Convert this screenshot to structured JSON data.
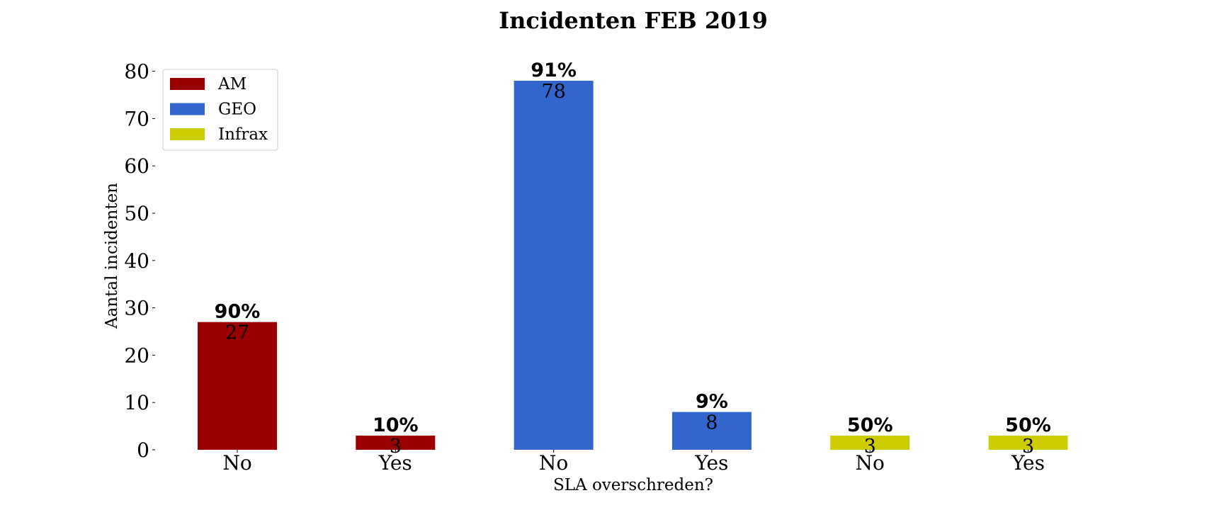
{
  "chart_data": {
    "type": "bar",
    "title": "Incidenten FEB 2019",
    "xlabel": "SLA overschreden?",
    "ylabel": "Aantal incidenten",
    "ylim": [
      0,
      84
    ],
    "yticks": [
      0,
      10,
      20,
      30,
      40,
      50,
      60,
      70,
      80
    ],
    "grid": false,
    "legend_placement": "top-left",
    "categories": [
      "No",
      "Yes",
      "No",
      "Yes",
      "No",
      "Yes"
    ],
    "values": [
      27,
      3,
      78,
      8,
      3,
      3
    ],
    "percent_labels": [
      "90%",
      "10%",
      "91%",
      "9%",
      "50%",
      "50%"
    ],
    "bar_groups": [
      "AM",
      "AM",
      "GEO",
      "GEO",
      "Infrax",
      "Infrax"
    ],
    "series": [
      {
        "name": "AM",
        "color": "#990000"
      },
      {
        "name": "GEO",
        "color": "#3366cc"
      },
      {
        "name": "Infrax",
        "color": "#cccc00"
      }
    ]
  }
}
